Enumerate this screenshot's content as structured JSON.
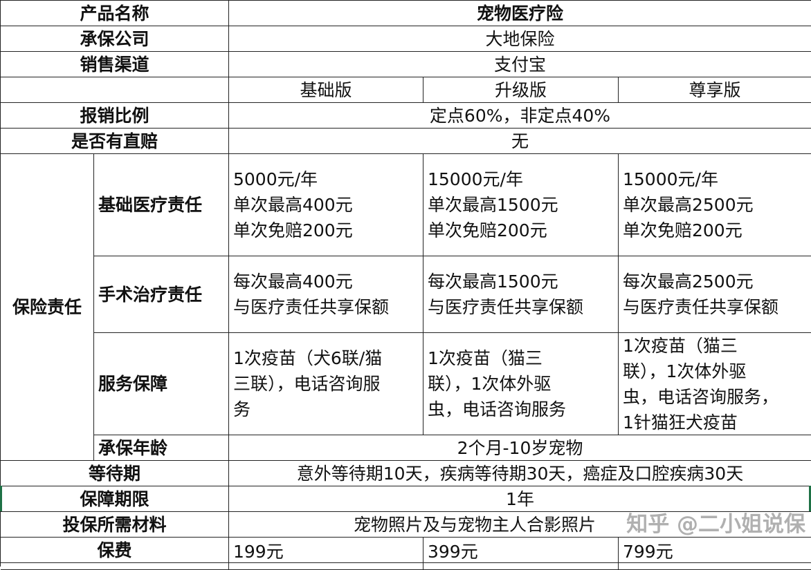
{
  "product_name": {
    "label": "产品名称",
    "value": "宠物医疗险"
  },
  "insurer": {
    "label": "承保公司",
    "value": "大地保险"
  },
  "channel": {
    "label": "销售渠道",
    "value": "支付宝"
  },
  "plans": [
    "基础版",
    "升级版",
    "尊享版"
  ],
  "reimbursement": {
    "label": "报销比例",
    "value": "定点60%，非定点40%"
  },
  "direct_pay": {
    "label": "是否有直赔",
    "value": "无"
  },
  "coverage": {
    "label": "保险责任",
    "basic_medical": {
      "label": "基础医疗责任",
      "plans": [
        [
          "5000元/年",
          "单次最高400元",
          "单次免赔200元"
        ],
        [
          "15000元/年",
          "单次最高1500元",
          "单次免赔200元"
        ],
        [
          "15000元/年",
          "单次最高2500元",
          "单次免赔200元"
        ]
      ]
    },
    "surgery": {
      "label": "手术治疗责任",
      "plans": [
        [
          "每次最高400元",
          "与医疗责任共享保额"
        ],
        [
          "每次最高1500元",
          "与医疗责任共享保额"
        ],
        [
          "每次最高2500元",
          "与医疗责任共享保额"
        ]
      ]
    },
    "service": {
      "label": "服务保障",
      "plans": [
        [
          "1次疫苗（犬6联/猫",
          "三联），电话咨询服",
          "务"
        ],
        [
          "1次疫苗（猫三",
          "联），1次体外驱",
          "虫，电话咨询服务"
        ],
        [
          "1次疫苗（猫三",
          "联），1次体外驱",
          "虫，电话咨询服务，",
          "1针猫狂犬疫苗"
        ]
      ]
    },
    "age": {
      "label": "承保年龄",
      "value": "2个月-10岁宠物"
    }
  },
  "waiting_period": {
    "label": "等待期",
    "value": "意外等待期10天，疾病等待期30天，癌症及口腔疾病30天"
  },
  "term": {
    "label": "保障期限",
    "value": "1年"
  },
  "materials": {
    "label": "投保所需材料",
    "value": "宠物照片及与宠物主人合影照片"
  },
  "premium": {
    "label": "保费",
    "values": [
      "199元",
      "399元",
      "799元"
    ]
  },
  "watermark": "知乎 @二小姐说保",
  "colors": {
    "grid": "#222222",
    "selection": "#1e7145"
  }
}
